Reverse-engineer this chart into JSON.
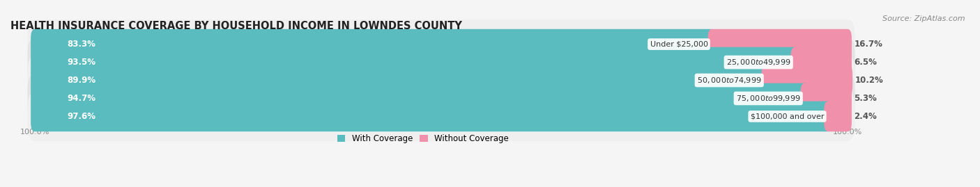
{
  "title": "HEALTH INSURANCE COVERAGE BY HOUSEHOLD INCOME IN LOWNDES COUNTY",
  "source": "Source: ZipAtlas.com",
  "categories": [
    "Under $25,000",
    "$25,000 to $49,999",
    "$50,000 to $74,999",
    "$75,000 to $99,999",
    "$100,000 and over"
  ],
  "with_coverage": [
    83.3,
    93.5,
    89.9,
    94.7,
    97.6
  ],
  "without_coverage": [
    16.7,
    6.5,
    10.2,
    5.3,
    2.4
  ],
  "coverage_color": "#5bbcbf",
  "no_coverage_color": "#f090aa",
  "row_bg_even": "#efefef",
  "row_bg_odd": "#e4e4e4",
  "title_fontsize": 10.5,
  "source_fontsize": 8,
  "bar_label_fontsize": 8.5,
  "cat_label_fontsize": 8,
  "legend_fontsize": 8.5,
  "axis_label_fontsize": 8,
  "background_color": "#f5f5f5",
  "bar_height": 0.68,
  "xlim_left": -3,
  "xlim_right": 115
}
